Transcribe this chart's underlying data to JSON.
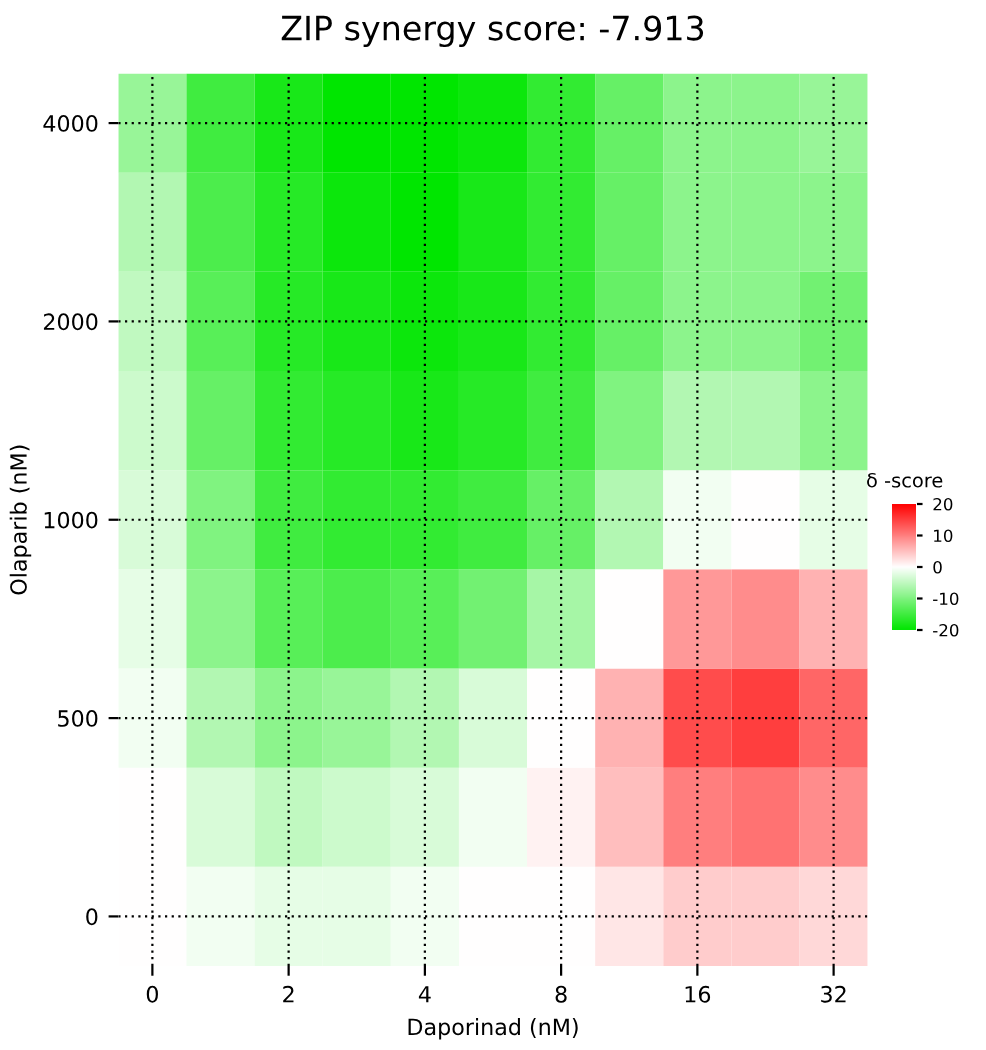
{
  "chart_data": {
    "type": "heatmap",
    "title": "ZIP synergy score: -7.913",
    "xlabel": "Daporinad (nM)",
    "ylabel": "Olaparib (nM)",
    "clabel": "δ -score",
    "categories": [
      "0",
      null,
      "2",
      null,
      "4",
      null,
      "8",
      null,
      "16",
      null,
      "32"
    ],
    "y_categories": [
      "4000",
      null,
      "2000",
      null,
      "1000",
      null,
      "500",
      null,
      "0"
    ],
    "cells": [
      [
        -8,
        -15,
        -18,
        -20,
        -20,
        -19,
        -16,
        -12,
        -9,
        -9,
        -8
      ],
      [
        -6,
        -14,
        -17,
        -19,
        -20,
        -18,
        -16,
        -12,
        -9,
        -9,
        -9
      ],
      [
        -5,
        -13,
        -17,
        -18,
        -19,
        -18,
        -16,
        -12,
        -9,
        -9,
        -11
      ],
      [
        -4,
        -12,
        -16,
        -17,
        -18,
        -17,
        -15,
        -10,
        -6,
        -6,
        -9
      ],
      [
        -3,
        -10,
        -15,
        -16,
        -16,
        -15,
        -12,
        -6,
        -1,
        0,
        -2
      ],
      [
        -2,
        -9,
        -13,
        -14,
        -13,
        -11,
        -7,
        0,
        8,
        9,
        6
      ],
      [
        -1,
        -6,
        -9,
        -8,
        -6,
        -3,
        0,
        6,
        14,
        15,
        12
      ],
      [
        0,
        -3,
        -5,
        -4,
        -3,
        -1,
        1,
        5,
        10,
        11,
        9
      ],
      [
        0,
        -1,
        -2,
        -2,
        -1,
        0,
        0,
        2,
        4,
        4,
        3
      ]
    ],
    "colors": [
      "#00e600",
      "#ffffff",
      "#ff0000"
    ],
    "clim": [
      -20,
      20
    ],
    "cticks": [
      -20,
      -10,
      0,
      10,
      20
    ],
    "grid": true
  }
}
